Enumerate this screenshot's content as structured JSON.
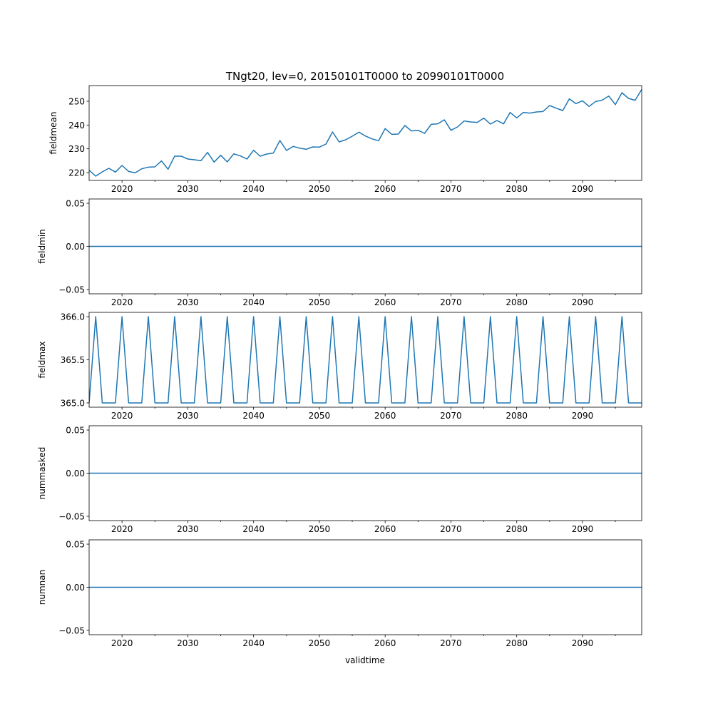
{
  "title": "TNgt20, lev=0, 20150101T0000 to 20990101T0000",
  "xlabel": "validtime",
  "line_color": "#1f77b4",
  "chart_data": [
    {
      "type": "line",
      "ylabel": "fieldmean",
      "xlim": [
        2015,
        2099
      ],
      "ylim": [
        216.7,
        256.6
      ],
      "yticks": [
        220,
        230,
        240,
        250
      ],
      "ytick_labels": [
        "220",
        "230",
        "240",
        "250"
      ],
      "x_start": 2015,
      "values": [
        221,
        218.5,
        220.3,
        221.8,
        220.2,
        223,
        220.5,
        219.9,
        221.6,
        222.3,
        222.4,
        224.9,
        221.4,
        226.9,
        226.9,
        225.7,
        225.4,
        225,
        228.5,
        224.4,
        227.3,
        224.5,
        227.9,
        227,
        225.7,
        229.4,
        226.9,
        227.8,
        228.2,
        233.5,
        229.3,
        231,
        230.3,
        229.8,
        230.8,
        230.7,
        232,
        237.1,
        232.9,
        233.8,
        235.3,
        237,
        235.4,
        234.2,
        233.4,
        238.5,
        236.1,
        236.2,
        239.8,
        237.5,
        237.8,
        236.5,
        240.3,
        240.5,
        242.2,
        237.8,
        239.2,
        241.7,
        241.3,
        241.1,
        242.9,
        240.4,
        241.9,
        240.5,
        245.3,
        243,
        245.3,
        245,
        245.5,
        245.7,
        248.2,
        247.1,
        246.1,
        251,
        249,
        250.2,
        247.8,
        249.9,
        250.5,
        252.2,
        248.6,
        253.6,
        251.2,
        250.4,
        255
      ]
    },
    {
      "type": "line",
      "ylabel": "fieldmin",
      "xlim": [
        2015,
        2099
      ],
      "ylim": [
        -0.055,
        0.055
      ],
      "yticks": [
        -0.05,
        0,
        0.05
      ],
      "ytick_labels": [
        "−0.05",
        "0.00",
        "0.05"
      ],
      "x_start": 2015,
      "constant": 0
    },
    {
      "type": "line",
      "ylabel": "fieldmax",
      "xlim": [
        2015,
        2099
      ],
      "ylim": [
        364.95,
        366.05
      ],
      "yticks": [
        365,
        365.5,
        366
      ],
      "ytick_labels": [
        "365.0",
        "365.5",
        "366.0"
      ],
      "x_start": 2015,
      "rule": "366 in leap years, 365 otherwise"
    },
    {
      "type": "line",
      "ylabel": "nummasked",
      "xlim": [
        2015,
        2099
      ],
      "ylim": [
        -0.055,
        0.055
      ],
      "yticks": [
        -0.05,
        0,
        0.05
      ],
      "ytick_labels": [
        "−0.05",
        "0.00",
        "0.05"
      ],
      "x_start": 2015,
      "constant": 0
    },
    {
      "type": "line",
      "ylabel": "numnan",
      "xlim": [
        2015,
        2099
      ],
      "ylim": [
        -0.055,
        0.055
      ],
      "yticks": [
        -0.05,
        0,
        0.05
      ],
      "ytick_labels": [
        "−0.05",
        "0.00",
        "0.05"
      ],
      "x_start": 2015,
      "constant": 0
    }
  ],
  "xtick_labels": [
    "2020",
    "2030",
    "2040",
    "2050",
    "2060",
    "2070",
    "2080",
    "2090"
  ]
}
